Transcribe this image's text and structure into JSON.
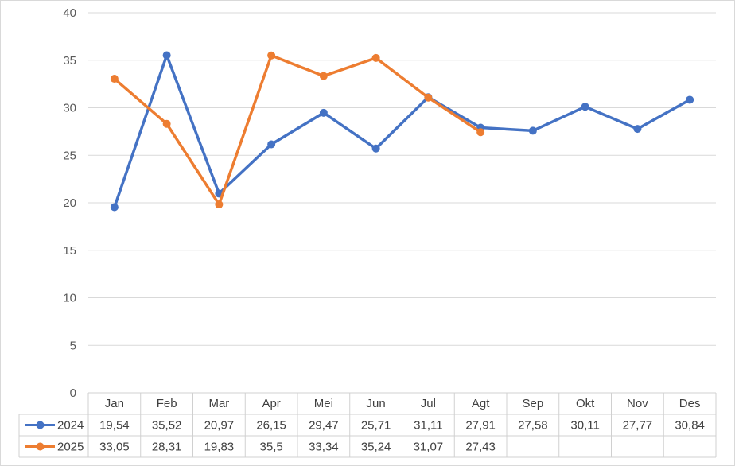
{
  "chart_data": {
    "type": "line",
    "title": "",
    "xlabel": "",
    "ylabel": "",
    "ylim": [
      0,
      40
    ],
    "y_ticks": [
      0,
      5,
      10,
      15,
      20,
      25,
      30,
      35,
      40
    ],
    "grid": true,
    "legend": "data-table",
    "categories": [
      "Jan",
      "Feb",
      "Mar",
      "Apr",
      "Mei",
      "Jun",
      "Jul",
      "Agt",
      "Sep",
      "Okt",
      "Nov",
      "Des"
    ],
    "series": [
      {
        "name": "2024",
        "color": "#4472c4",
        "values": [
          19.54,
          35.52,
          20.97,
          26.15,
          29.47,
          25.71,
          31.11,
          27.91,
          27.58,
          30.11,
          27.77,
          30.84
        ],
        "labels": [
          "19,54",
          "35,52",
          "20,97",
          "26,15",
          "29,47",
          "25,71",
          "31,11",
          "27,91",
          "27,58",
          "30,11",
          "27,77",
          "30,84"
        ]
      },
      {
        "name": "2025",
        "color": "#ed7d31",
        "values": [
          33.05,
          28.31,
          19.83,
          35.5,
          33.34,
          35.24,
          31.07,
          27.43,
          null,
          null,
          null,
          null
        ],
        "labels": [
          "33,05",
          "28,31",
          "19,83",
          "35,5",
          "33,34",
          "35,24",
          "31,07",
          "27,43",
          "",
          "",
          "",
          ""
        ]
      }
    ]
  }
}
